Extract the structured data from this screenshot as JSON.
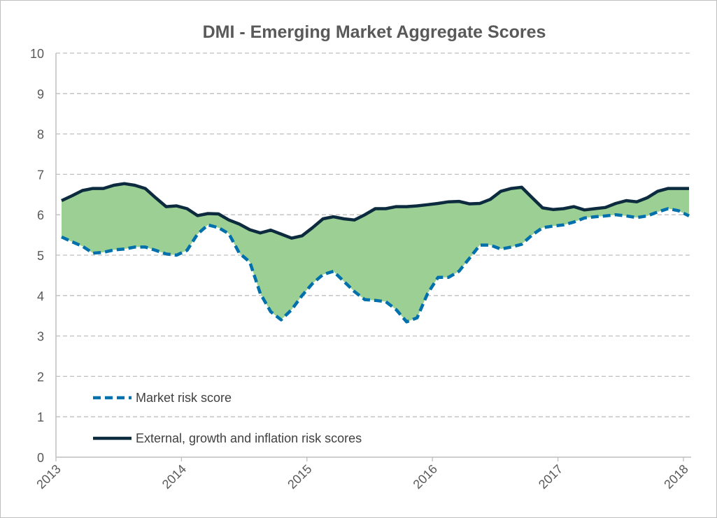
{
  "chart_data": {
    "type": "area",
    "title": "DMI - Emerging Market Aggregate Scores",
    "xlabel": "",
    "ylabel": "",
    "ylim": [
      0,
      10
    ],
    "yticks": [
      "0",
      "1",
      "2",
      "3",
      "4",
      "5",
      "6",
      "7",
      "8",
      "9",
      "10"
    ],
    "xticks": [
      "2013",
      "2014",
      "2015",
      "2016",
      "2017",
      "2018"
    ],
    "x_start": "2013-01",
    "x_frequency": "monthly",
    "grid": true,
    "legend_position": "bottom-left",
    "series": [
      {
        "name": "Market risk score",
        "style": "dashed",
        "color": "#0070AD",
        "values": [
          5.45,
          5.33,
          5.22,
          5.05,
          5.07,
          5.13,
          5.15,
          5.2,
          5.2,
          5.12,
          5.03,
          5.0,
          5.12,
          5.52,
          5.75,
          5.68,
          5.53,
          5.05,
          4.83,
          4.05,
          3.6,
          3.4,
          3.65,
          4.0,
          4.3,
          4.52,
          4.6,
          4.35,
          4.1,
          3.9,
          3.88,
          3.85,
          3.65,
          3.35,
          3.45,
          4.05,
          4.45,
          4.45,
          4.6,
          4.92,
          5.25,
          5.25,
          5.15,
          5.2,
          5.27,
          5.5,
          5.68,
          5.72,
          5.75,
          5.82,
          5.92,
          5.95,
          5.97,
          6.0,
          5.97,
          5.93,
          5.97,
          6.07,
          6.15,
          6.1,
          5.97
        ]
      },
      {
        "name": "External, growth and inflation risk scores",
        "style": "solid",
        "color": "#0D2B3E",
        "values": [
          6.35,
          6.47,
          6.6,
          6.65,
          6.65,
          6.73,
          6.77,
          6.73,
          6.65,
          6.42,
          6.2,
          6.22,
          6.15,
          5.98,
          6.03,
          6.02,
          5.87,
          5.77,
          5.63,
          5.55,
          5.62,
          5.52,
          5.42,
          5.48,
          5.68,
          5.9,
          5.95,
          5.9,
          5.87,
          6.0,
          6.15,
          6.15,
          6.2,
          6.2,
          6.22,
          6.25,
          6.28,
          6.32,
          6.33,
          6.27,
          6.28,
          6.38,
          6.58,
          6.65,
          6.68,
          6.42,
          6.17,
          6.13,
          6.15,
          6.2,
          6.12,
          6.15,
          6.18,
          6.28,
          6.35,
          6.32,
          6.42,
          6.58,
          6.65,
          6.65,
          6.65
        ]
      }
    ],
    "fill_between_color": "#9BCF93"
  }
}
